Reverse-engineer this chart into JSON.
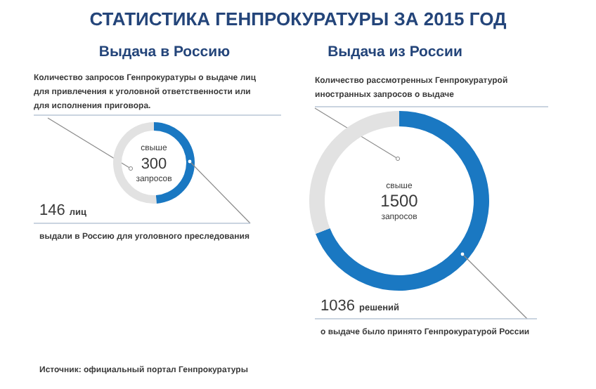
{
  "chart_data": [
    {
      "type": "donut",
      "title": "СТАТИСТИКА ГЕНПРОКУРАТУРЫ ЗА 2015 ГОД",
      "subtitle": "Выдача в Россию",
      "categories": [
        null,
        null
      ],
      "values": [
        49,
        51
      ],
      "colors": [
        "#1a78c2",
        "#e2e2e2"
      ],
      "annotations": [
        "Количество запросов Генпрокуратуры о выдаче лиц\nдля привлечения к уголовной ответственности или\nдля исполнения приговора.",
        "свыше",
        "300",
        "запросов",
        "146",
        "лиц",
        "выдали в Россию для уголовного преследования",
        "Источник: официальный портал Генпрокуратуры"
      ]
    },
    {
      "type": "donut",
      "subtitle": "Выдача из России",
      "categories": [
        null,
        null
      ],
      "values": [
        69,
        31
      ],
      "colors": [
        "#1a78c2",
        "#e2e2e2"
      ],
      "annotations": [
        "Количество рассмотренных Генпрокуратурой\nиностранных запросов о выдаче",
        "свыше",
        "1500",
        "запросов",
        "1036",
        "решений",
        "о выдаче было принято Генпрокуратурой России"
      ]
    }
  ]
}
